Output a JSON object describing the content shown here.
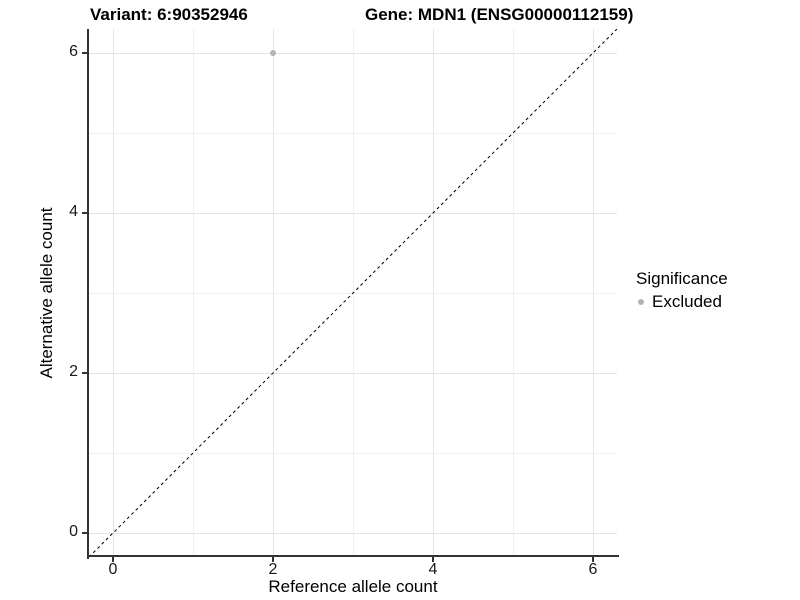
{
  "chart_data": {
    "type": "scatter",
    "title_left": "Variant: 6:90352946",
    "title_right": "Gene: MDN1 (ENSG00000112159)",
    "xlabel": "Reference allele count",
    "ylabel": "Alternative allele count",
    "xlim": [
      -0.3,
      6.3
    ],
    "ylim": [
      -0.3,
      6.3
    ],
    "x_ticks": [
      0,
      2,
      4,
      6
    ],
    "y_ticks": [
      0,
      2,
      4,
      6
    ],
    "minor_ticks": [
      1,
      3,
      5
    ],
    "grid": true,
    "aspect": "fixed",
    "identity_line": {
      "style": "dashed",
      "color": "#000000",
      "from": [
        -0.3,
        -0.3
      ],
      "to": [
        6.3,
        6.3
      ]
    },
    "series": [
      {
        "name": "Excluded",
        "color": "#b3b3b3",
        "points": [
          {
            "x": 2,
            "y": 6
          }
        ]
      }
    ],
    "legend": {
      "title": "Significance",
      "position": "right",
      "entries": [
        {
          "label": "Excluded",
          "color": "#b3b3b3"
        }
      ]
    }
  },
  "colors": {
    "background": "#ffffff",
    "axis_line": "#333333",
    "grid_major": "#e3e3e3",
    "grid_minor": "#f0f0f0",
    "point": "#b3b3b3",
    "text": "#000000"
  }
}
